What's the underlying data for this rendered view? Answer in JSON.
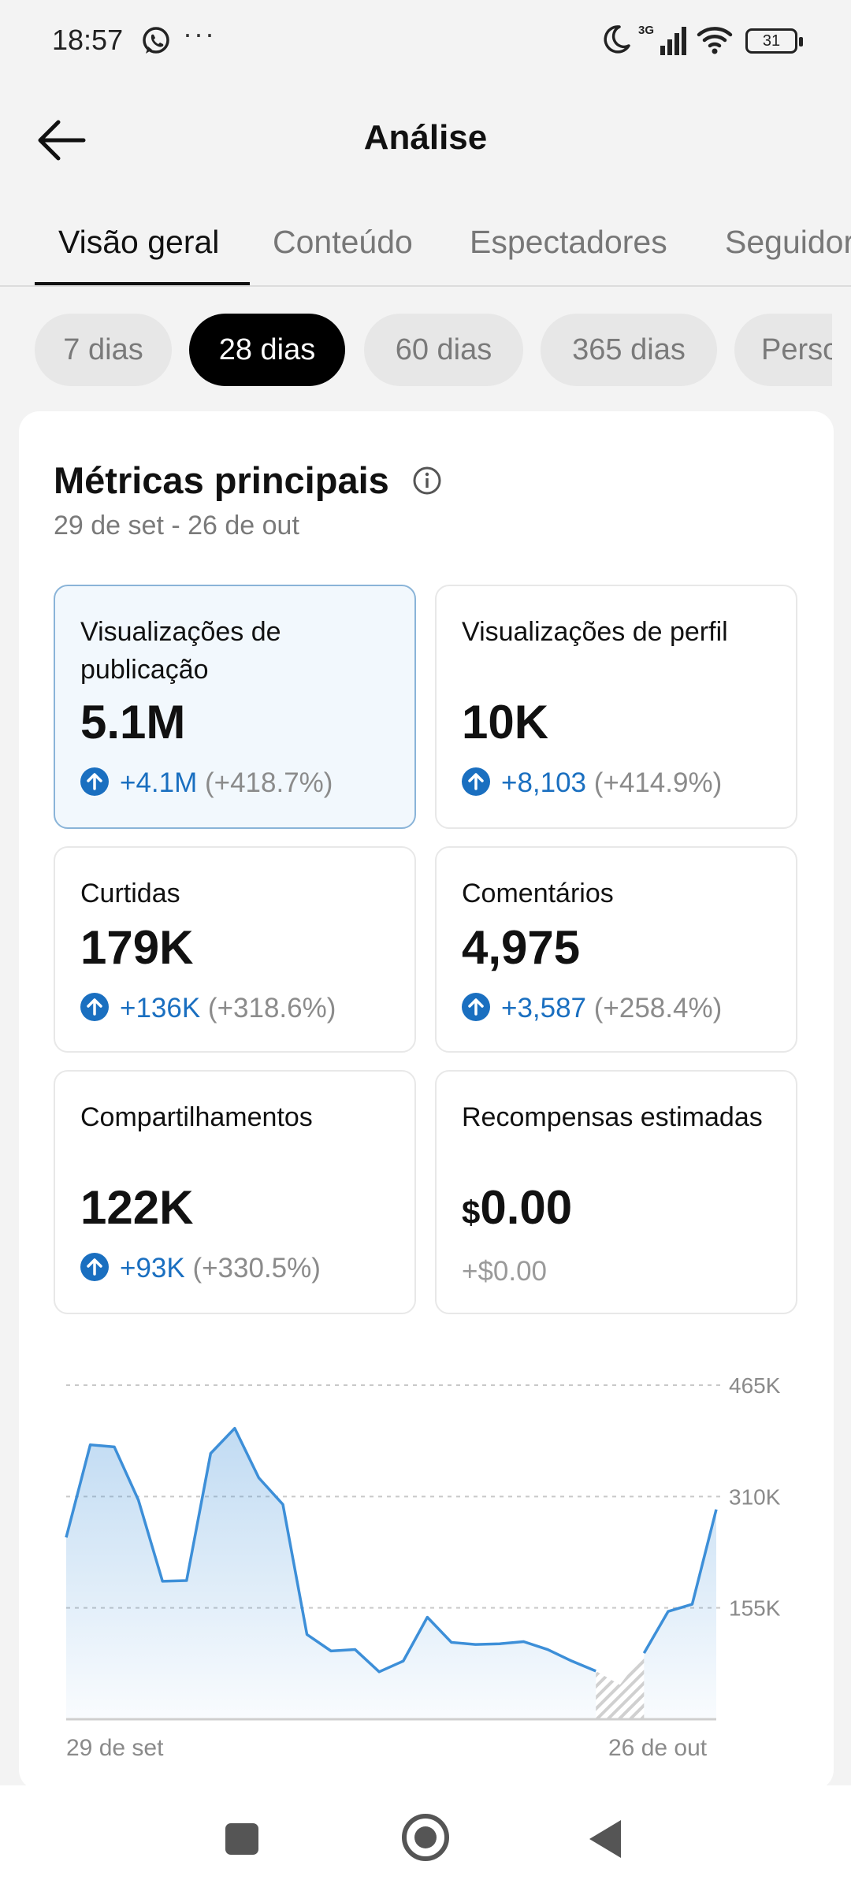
{
  "status_bar": {
    "time": "18:57",
    "more": "···",
    "network_type": "3G",
    "battery": "31"
  },
  "header": {
    "title": "Análise"
  },
  "tabs": [
    {
      "label": "Visão geral",
      "active": true
    },
    {
      "label": "Conteúdo",
      "active": false
    },
    {
      "label": "Espectadores",
      "active": false
    },
    {
      "label": "Seguidores",
      "active": false
    }
  ],
  "ranges": [
    {
      "label": "7 dias",
      "active": false
    },
    {
      "label": "28 dias",
      "active": true
    },
    {
      "label": "60 dias",
      "active": false
    },
    {
      "label": "365 dias",
      "active": false
    },
    {
      "label": "Personalizado",
      "active": false
    }
  ],
  "metrics_card": {
    "title": "Métricas principais",
    "date_range": "29 de set - 26 de out",
    "metrics": [
      {
        "label": "Visualizações de publicação",
        "value": "5.1M",
        "delta": "+4.1M",
        "pct": "(+418.7%)",
        "selected": true
      },
      {
        "label": "Visualizações de perfil",
        "value": "10K",
        "delta": "+8,103",
        "pct": "(+414.9%)",
        "selected": false
      },
      {
        "label": "Curtidas",
        "value": "179K",
        "delta": "+136K",
        "pct": "(+318.6%)",
        "selected": false
      },
      {
        "label": "Comentários",
        "value": "4,975",
        "delta": "+3,587",
        "pct": "(+258.4%)",
        "selected": false
      },
      {
        "label": "Compartilhamentos",
        "value": "122K",
        "delta": "+93K",
        "pct": "(+330.5%)",
        "selected": false
      },
      {
        "label": "Recompensas estimadas",
        "currency": "$",
        "value": "0.00",
        "change": "+$0.00",
        "selected": false
      }
    ]
  },
  "colors": {
    "accent_blue": "#1a6fc0",
    "line_blue": "#3d8fd8",
    "selected_bg": "#f2f8fd"
  },
  "chart_data": {
    "type": "area",
    "x_start_label": "29 de set",
    "x_end_label": "26 de out",
    "y_tick_labels": [
      "465K",
      "310K",
      "155K"
    ],
    "y_ticks": [
      465000,
      310000,
      155000
    ],
    "ylim": [
      0,
      465000
    ],
    "grid": true,
    "hatched_day_indices": [
      22,
      23
    ],
    "series": [
      {
        "values": [
          253000,
          382000,
          379000,
          305000,
          192000,
          193000,
          370000,
          405000,
          336000,
          299000,
          118000,
          95000,
          97000,
          66000,
          81000,
          142000,
          107000,
          104000,
          105000,
          108000,
          97000,
          81000,
          67000,
          48000,
          92000,
          150000,
          160000,
          292000
        ]
      }
    ]
  },
  "nav_bar": {
    "recents": "recents",
    "home": "home",
    "back": "back"
  }
}
